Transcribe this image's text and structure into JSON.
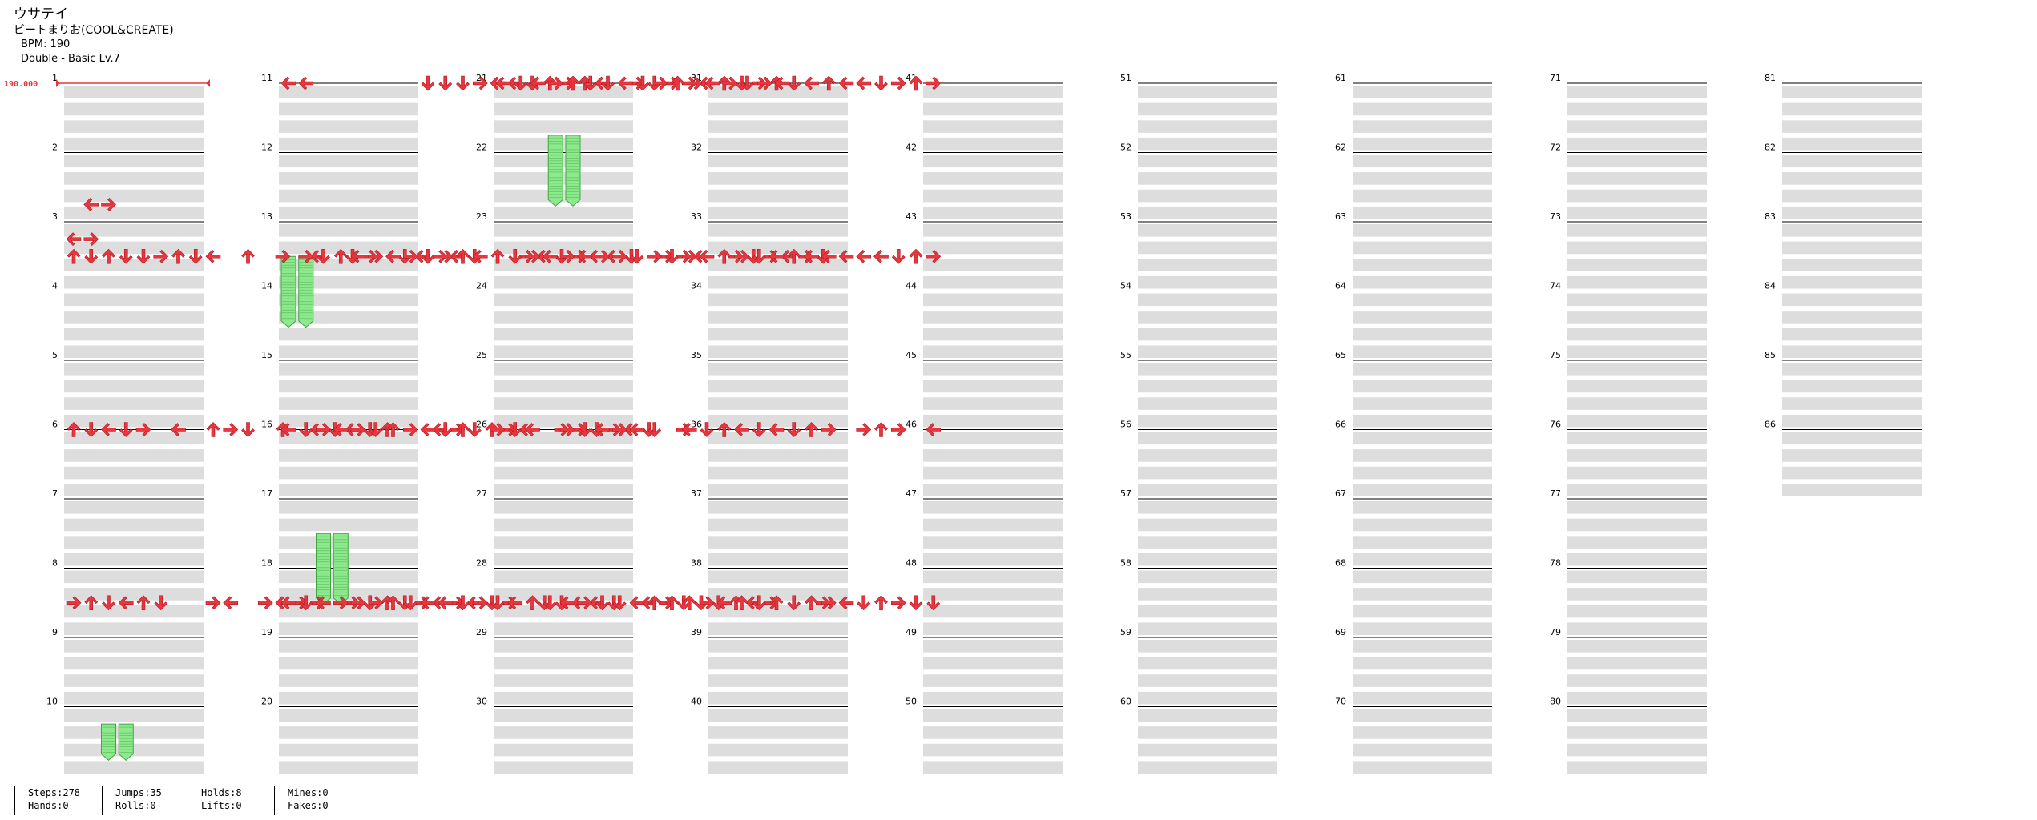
{
  "header": {
    "title": "ウサテイ",
    "artist": "ビートまりお(COOL&CREATE)",
    "bpm_line": "BPM: 190",
    "difficulty_line": "Double - Basic  Lv.7"
  },
  "bpm_marker": "190.000",
  "measure_labels": [
    "1",
    "2",
    "3",
    "4",
    "5",
    "6",
    "7",
    "8",
    "9",
    "10",
    "11",
    "12",
    "13",
    "14",
    "15",
    "16",
    "17",
    "18",
    "19",
    "20",
    "21",
    "22",
    "23",
    "24",
    "25",
    "26",
    "27",
    "28",
    "29",
    "30",
    "31",
    "32",
    "33",
    "34",
    "35",
    "36",
    "37",
    "38",
    "39",
    "40",
    "41",
    "42",
    "43",
    "44",
    "45",
    "46",
    "47",
    "48",
    "49",
    "50",
    "51",
    "52",
    "53",
    "54",
    "55",
    "56",
    "57",
    "58",
    "59",
    "60",
    "61",
    "62",
    "63",
    "64",
    "65",
    "66",
    "67",
    "68",
    "69",
    "70",
    "71",
    "72",
    "73",
    "74",
    "75",
    "76",
    "77",
    "78",
    "79",
    "80",
    "81",
    "82",
    "83",
    "84",
    "85",
    "86"
  ],
  "stats": {
    "steps": "Steps:278",
    "hands": "Hands:0",
    "jumps": "Jumps:35",
    "rolls": "Rolls:0",
    "holds": "Holds:8",
    "lifts": "Lifts:0",
    "mines": "Mines:0",
    "fakes": "Fakes:0"
  },
  "colors": {
    "arrow": "#e8363e",
    "hold": "#8ee88e",
    "stripe": "#dddddd",
    "bpm": "#e8363e"
  },
  "notes": [
    [
      7,
      1,
      "L"
    ],
    [
      7,
      2,
      "R"
    ],
    [
      9,
      0,
      "L"
    ],
    [
      9,
      1,
      "R"
    ],
    [
      10,
      0,
      "U"
    ],
    [
      10,
      1,
      "D"
    ],
    [
      10,
      2,
      "U"
    ],
    [
      10,
      3,
      "D"
    ],
    [
      10,
      4,
      "D"
    ],
    [
      10,
      5,
      "R"
    ],
    [
      10,
      6,
      "U"
    ],
    [
      10,
      7,
      "D"
    ],
    [
      10,
      8,
      "L"
    ],
    [
      10,
      10,
      "U"
    ],
    [
      10,
      12,
      "R"
    ],
    [
      10,
      14,
      "L"
    ],
    [
      10,
      16,
      "D"
    ],
    [
      10,
      17,
      "R"
    ],
    [
      10,
      19,
      "D"
    ],
    [
      10,
      20,
      "L"
    ],
    [
      10,
      21,
      "R"
    ],
    [
      10,
      22,
      "L"
    ],
    [
      10,
      23,
      "D"
    ],
    [
      10,
      26,
      "R"
    ],
    [
      10,
      27,
      "L"
    ],
    [
      10,
      28,
      "D"
    ],
    [
      10,
      29,
      "R"
    ],
    [
      10,
      30,
      "L"
    ],
    [
      10,
      31,
      "L"
    ],
    [
      10,
      32,
      "D"
    ],
    [
      10,
      34,
      "R"
    ],
    [
      10,
      35,
      "R"
    ],
    [
      10,
      36,
      "L"
    ],
    [
      10,
      38,
      "R"
    ],
    [
      10,
      39,
      "D"
    ],
    [
      10,
      40,
      "R"
    ],
    [
      10,
      41,
      "L"
    ],
    [
      10,
      42,
      "R"
    ],
    [
      10,
      43,
      "D"
    ],
    [
      20,
      0,
      "U"
    ],
    [
      20,
      1,
      "D"
    ],
    [
      20,
      2,
      "L"
    ],
    [
      20,
      3,
      "D"
    ],
    [
      20,
      4,
      "R"
    ],
    [
      20,
      6,
      "L"
    ],
    [
      20,
      8,
      "U"
    ],
    [
      20,
      9,
      "R"
    ],
    [
      20,
      10,
      "D"
    ],
    [
      20,
      12,
      "U"
    ],
    [
      20,
      14,
      "L"
    ],
    [
      20,
      15,
      "D"
    ],
    [
      20,
      16,
      "L"
    ],
    [
      20,
      17,
      "D"
    ],
    [
      20,
      18,
      "U"
    ],
    [
      20,
      21,
      "L"
    ],
    [
      20,
      22,
      "R"
    ],
    [
      20,
      23,
      "D"
    ],
    [
      20,
      24,
      "U"
    ],
    [
      20,
      25,
      "R"
    ],
    [
      20,
      26,
      "L"
    ],
    [
      20,
      28,
      "R"
    ],
    [
      20,
      29,
      "R"
    ],
    [
      20,
      30,
      "D"
    ],
    [
      20,
      31,
      "R"
    ],
    [
      20,
      32,
      "L"
    ],
    [
      20,
      33,
      "D"
    ],
    [
      20,
      35,
      "R"
    ],
    [
      30,
      0,
      "R"
    ],
    [
      30,
      1,
      "U"
    ],
    [
      30,
      2,
      "D"
    ],
    [
      30,
      3,
      "L"
    ],
    [
      30,
      4,
      "U"
    ],
    [
      30,
      5,
      "D"
    ],
    [
      30,
      8,
      "R"
    ],
    [
      30,
      9,
      "L"
    ],
    [
      30,
      11,
      "R"
    ],
    [
      30,
      12,
      "L"
    ],
    [
      30,
      13,
      "R"
    ],
    [
      30,
      14,
      "R"
    ],
    [
      30,
      16,
      "R"
    ],
    [
      30,
      17,
      "D"
    ],
    [
      30,
      18,
      "U"
    ],
    [
      30,
      19,
      "D"
    ],
    [
      30,
      20,
      "R"
    ],
    [
      30,
      21,
      "L"
    ],
    [
      30,
      22,
      "R"
    ],
    [
      30,
      23,
      "L"
    ],
    [
      30,
      24,
      "D"
    ],
    [
      30,
      25,
      "R"
    ],
    [
      30,
      27,
      "D"
    ],
    [
      30,
      28,
      "D"
    ],
    [
      30,
      29,
      "L"
    ],
    [
      30,
      30,
      "L"
    ],
    [
      30,
      31,
      "D"
    ],
    [
      30,
      33,
      "L"
    ],
    [
      30,
      34,
      "R"
    ],
    [
      30,
      35,
      "D"
    ],
    [
      30,
      36,
      "D"
    ],
    [
      30,
      37,
      "D"
    ],
    [
      30,
      38,
      "U"
    ],
    [
      30,
      39,
      "L"
    ],
    [
      30,
      40,
      "R"
    ],
    [
      30,
      43,
      "R"
    ],
    [
      40,
      0,
      "L"
    ],
    [
      40,
      1,
      "L"
    ],
    [
      40,
      8,
      "D"
    ],
    [
      40,
      9,
      "D"
    ],
    [
      40,
      10,
      "D"
    ],
    [
      40,
      11,
      "R"
    ],
    [
      40,
      12,
      "L"
    ],
    [
      40,
      13,
      "L"
    ],
    [
      40,
      14,
      "D"
    ],
    [
      40,
      15,
      "U"
    ],
    [
      40,
      16,
      "R"
    ],
    [
      40,
      17,
      "U"
    ],
    [
      40,
      18,
      "L"
    ],
    [
      40,
      20,
      "R"
    ],
    [
      40,
      21,
      "D"
    ],
    [
      40,
      22,
      "R"
    ],
    [
      40,
      23,
      "R"
    ],
    [
      40,
      24,
      "L"
    ],
    [
      40,
      25,
      "U"
    ],
    [
      40,
      26,
      "D"
    ],
    [
      40,
      27,
      "R"
    ],
    [
      40,
      28,
      "U"
    ],
    [
      40,
      29,
      "D"
    ],
    [
      40,
      30,
      "L"
    ],
    [
      40,
      31,
      "U"
    ],
    [
      40,
      32,
      "L"
    ],
    [
      40,
      33,
      "L"
    ],
    [
      40,
      34,
      "D"
    ],
    [
      40,
      35,
      "R"
    ],
    [
      40,
      36,
      "U"
    ],
    [
      40,
      37,
      "R"
    ],
    [
      50,
      1,
      "R"
    ],
    [
      50,
      2,
      "D"
    ],
    [
      50,
      3,
      "U"
    ],
    [
      50,
      4,
      "L"
    ],
    [
      50,
      5,
      "R"
    ],
    [
      50,
      6,
      "L"
    ],
    [
      50,
      7,
      "R"
    ],
    [
      50,
      8,
      "D"
    ],
    [
      50,
      9,
      "R"
    ],
    [
      50,
      10,
      "U"
    ],
    [
      50,
      11,
      "L"
    ],
    [
      50,
      12,
      "U"
    ],
    [
      50,
      13,
      "D"
    ],
    [
      50,
      14,
      "R"
    ],
    [
      50,
      15,
      "L"
    ],
    [
      50,
      16,
      "R"
    ],
    [
      50,
      17,
      "L"
    ],
    [
      50,
      18,
      "R"
    ],
    [
      50,
      19,
      "R"
    ],
    [
      50,
      20,
      "D"
    ],
    [
      50,
      21,
      "R"
    ],
    [
      50,
      22,
      "D"
    ],
    [
      50,
      23,
      "R"
    ],
    [
      50,
      24,
      "L"
    ],
    [
      50,
      25,
      "U"
    ],
    [
      50,
      26,
      "R"
    ],
    [
      50,
      27,
      "D"
    ],
    [
      50,
      28,
      "L"
    ],
    [
      50,
      29,
      "U"
    ],
    [
      50,
      30,
      "L"
    ],
    [
      50,
      31,
      "L"
    ],
    [
      50,
      32,
      "L"
    ],
    [
      50,
      33,
      "L"
    ],
    [
      50,
      34,
      "L"
    ],
    [
      50,
      35,
      "D"
    ],
    [
      50,
      36,
      "U"
    ],
    [
      50,
      37,
      "R"
    ],
    [
      60,
      0,
      "L"
    ],
    [
      60,
      1,
      "D"
    ],
    [
      60,
      2,
      "R"
    ],
    [
      60,
      3,
      "L"
    ],
    [
      60,
      4,
      "R"
    ],
    [
      60,
      5,
      "D"
    ],
    [
      60,
      6,
      "U"
    ],
    [
      60,
      7,
      "R"
    ],
    [
      60,
      8,
      "L"
    ],
    [
      60,
      9,
      "D"
    ],
    [
      60,
      10,
      "U"
    ],
    [
      60,
      12,
      "R"
    ],
    [
      60,
      13,
      "D"
    ],
    [
      60,
      14,
      "L"
    ],
    [
      60,
      16,
      "R"
    ],
    [
      60,
      17,
      "D"
    ],
    [
      60,
      18,
      "L"
    ],
    [
      60,
      19,
      "R"
    ],
    [
      60,
      20,
      "L"
    ],
    [
      60,
      21,
      "D"
    ],
    [
      60,
      23,
      "L"
    ],
    [
      60,
      24,
      "D"
    ],
    [
      60,
      25,
      "U"
    ],
    [
      60,
      26,
      "L"
    ],
    [
      60,
      27,
      "D"
    ],
    [
      60,
      28,
      "L"
    ],
    [
      60,
      29,
      "D"
    ],
    [
      60,
      30,
      "U"
    ],
    [
      60,
      31,
      "R"
    ],
    [
      60,
      33,
      "R"
    ],
    [
      60,
      34,
      "U"
    ],
    [
      60,
      35,
      "R"
    ],
    [
      60,
      37,
      "L"
    ],
    [
      70,
      0,
      "L"
    ],
    [
      70,
      1,
      "D"
    ],
    [
      70,
      2,
      "L"
    ],
    [
      70,
      3,
      "R"
    ],
    [
      70,
      4,
      "R"
    ],
    [
      70,
      5,
      "R"
    ],
    [
      70,
      6,
      "U"
    ],
    [
      70,
      7,
      "D"
    ],
    [
      70,
      8,
      "L"
    ],
    [
      70,
      9,
      "L"
    ],
    [
      70,
      10,
      "D"
    ],
    [
      70,
      11,
      "R"
    ],
    [
      70,
      12,
      "D"
    ],
    [
      70,
      13,
      "L"
    ],
    [
      70,
      14,
      "U"
    ],
    [
      70,
      15,
      "D"
    ],
    [
      70,
      16,
      "L"
    ],
    [
      70,
      17,
      "R"
    ],
    [
      70,
      18,
      "D"
    ],
    [
      70,
      19,
      "D"
    ],
    [
      70,
      20,
      "L"
    ],
    [
      70,
      21,
      "U"
    ],
    [
      70,
      22,
      "U"
    ],
    [
      70,
      23,
      "U"
    ],
    [
      70,
      24,
      "R"
    ],
    [
      70,
      25,
      "L"
    ],
    [
      70,
      26,
      "U"
    ],
    [
      70,
      27,
      "D"
    ],
    [
      70,
      28,
      "U"
    ],
    [
      70,
      29,
      "D"
    ],
    [
      70,
      30,
      "U"
    ],
    [
      70,
      31,
      "R"
    ],
    [
      70,
      32,
      "L"
    ],
    [
      70,
      33,
      "D"
    ],
    [
      70,
      34,
      "U"
    ],
    [
      70,
      35,
      "R"
    ],
    [
      70,
      36,
      "D"
    ],
    [
      70,
      37,
      "D"
    ],
    [
      80,
      0,
      "L"
    ],
    [
      80,
      1,
      "D"
    ],
    [
      80,
      2,
      "L"
    ],
    [
      80,
      3,
      "R"
    ],
    [
      80,
      4,
      "U"
    ],
    [
      80,
      5,
      "D"
    ],
    [
      80,
      6,
      "D"
    ],
    [
      80,
      7,
      "L"
    ],
    [
      80,
      8,
      "D"
    ],
    [
      80,
      9,
      "R"
    ],
    [
      80,
      10,
      "U"
    ],
    [
      80,
      11,
      "R"
    ],
    [
      80,
      12,
      "L"
    ],
    [
      80,
      13,
      "R"
    ],
    [
      80,
      14,
      "D"
    ],
    [
      80,
      15,
      "R"
    ],
    [
      80,
      16,
      "L"
    ]
  ],
  "holds": [
    [
      50,
      0,
      4
    ],
    [
      50,
      1,
      4
    ],
    [
      66,
      2,
      4
    ],
    [
      66,
      3,
      4
    ],
    [
      37,
      2,
      2
    ],
    [
      37,
      3,
      2
    ],
    [
      83,
      3,
      4
    ],
    [
      83,
      4,
      4
    ]
  ]
}
